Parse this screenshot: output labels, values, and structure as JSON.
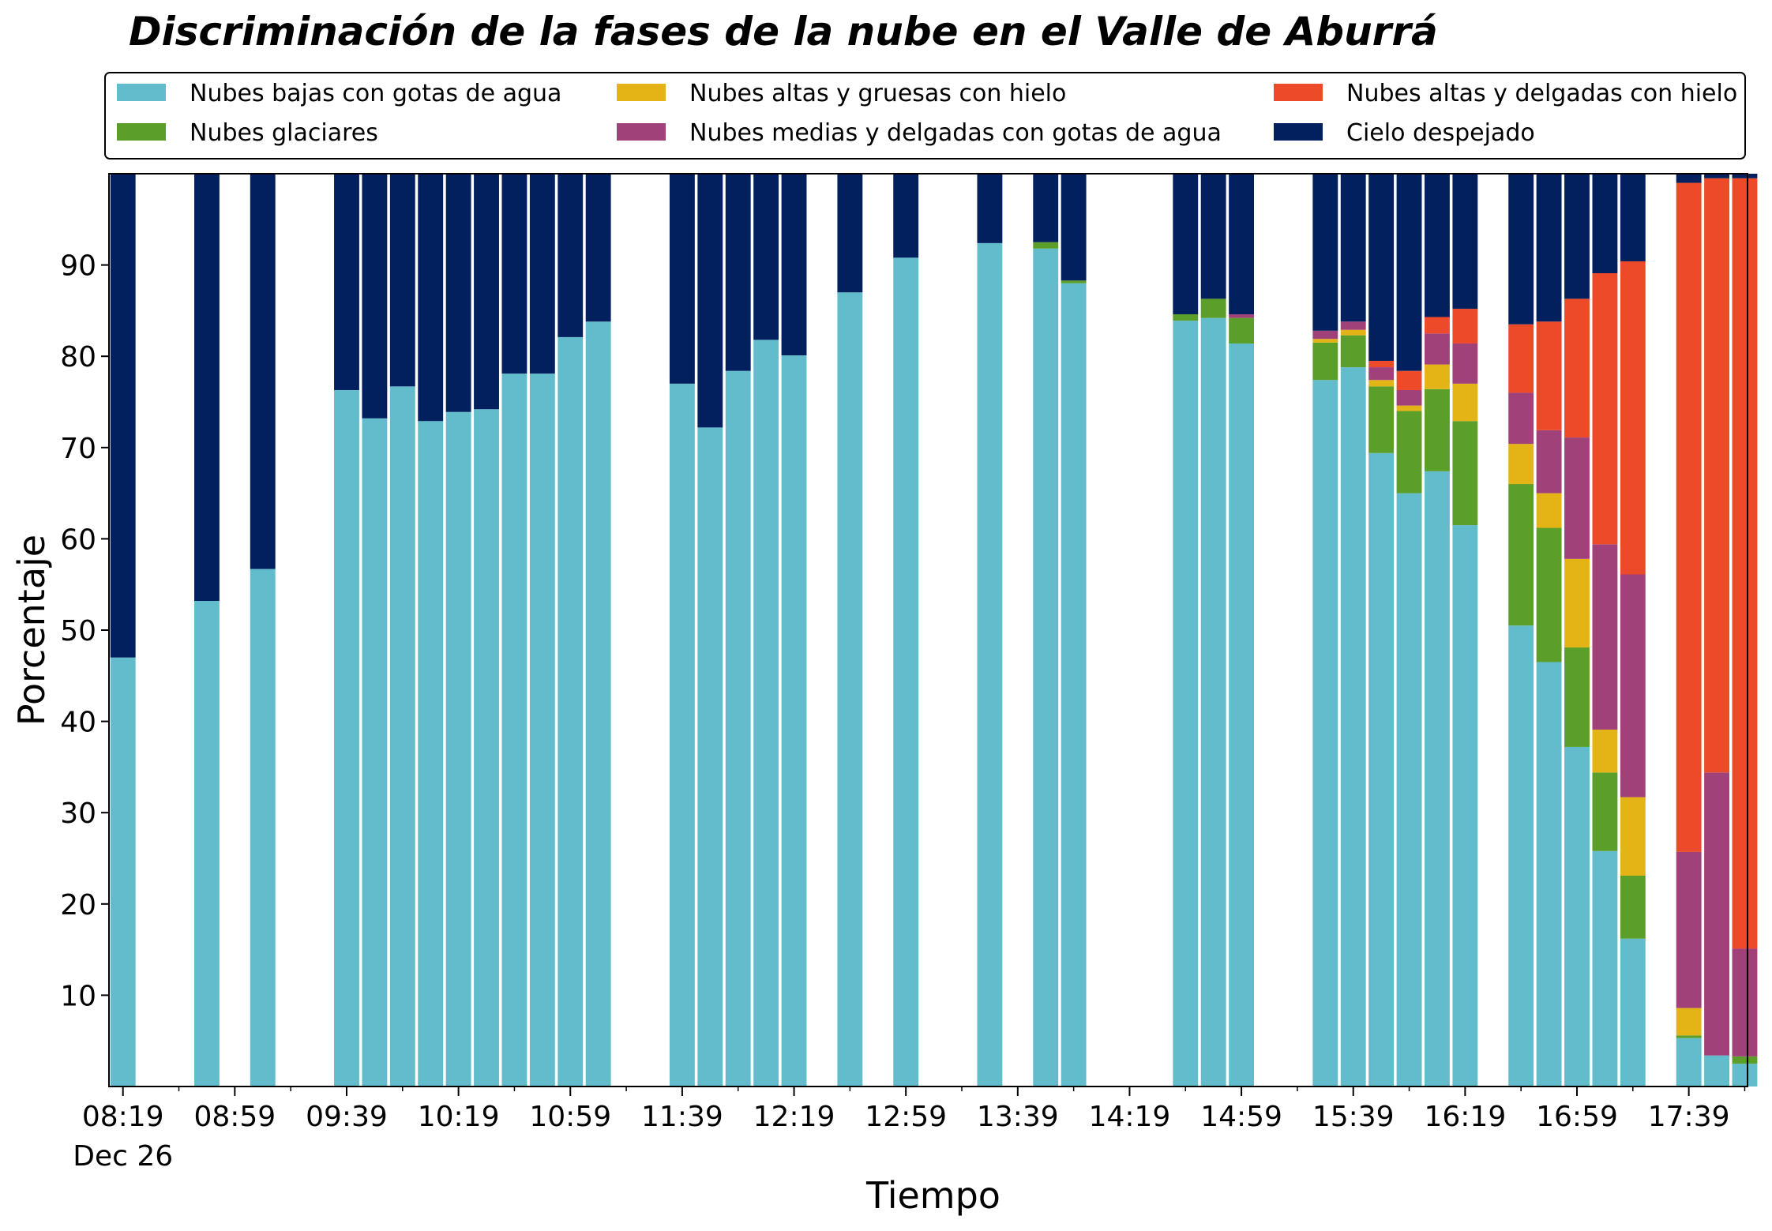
{
  "chart_data": {
    "type": "bar",
    "stacked": true,
    "title": "Discriminación de la fases de la nube en el Valle de Aburrá",
    "xlabel": "Tiempo",
    "ylabel": "Porcentaje",
    "ylim": [
      0,
      100
    ],
    "yticks": [
      10,
      20,
      30,
      40,
      50,
      60,
      70,
      80,
      90
    ],
    "xlim": [
      "08:14",
      "18:00"
    ],
    "x_tick_labels": [
      "08:19",
      "08:59",
      "09:39",
      "10:19",
      "10:59",
      "11:39",
      "12:19",
      "12:59",
      "13:39",
      "14:19",
      "14:59",
      "15:39",
      "16:19",
      "16:59",
      "17:39"
    ],
    "x_date_label": "Dec 26",
    "grid": false,
    "legend_placement": "top",
    "bar_width_minutes": 9,
    "series": [
      {
        "name": "Nubes bajas con gotas de agua",
        "color": "#63bccb"
      },
      {
        "name": "Nubes glaciares",
        "color": "#5b9e2a"
      },
      {
        "name": "Nubes altas y gruesas con hielo",
        "color": "#e4b417"
      },
      {
        "name": "Nubes medias y delgadas con gotas de agua",
        "color": "#a0417a"
      },
      {
        "name": "Nubes altas y delgadas con hielo",
        "color": "#ec4a29"
      },
      {
        "name": "Cielo despejado",
        "color": "#03205e"
      }
    ],
    "bars": [
      {
        "time": "08:19",
        "values": [
          47.0,
          0,
          0,
          0,
          0,
          53.0
        ]
      },
      {
        "time": "08:49",
        "values": [
          53.2,
          0,
          0,
          0,
          0,
          46.8
        ]
      },
      {
        "time": "09:09",
        "values": [
          56.7,
          0,
          0,
          0,
          0,
          43.3
        ]
      },
      {
        "time": "09:39",
        "values": [
          76.3,
          0,
          0,
          0,
          0,
          23.7
        ]
      },
      {
        "time": "09:49",
        "values": [
          73.2,
          0,
          0,
          0,
          0,
          26.8
        ]
      },
      {
        "time": "09:59",
        "values": [
          76.7,
          0,
          0,
          0,
          0,
          23.3
        ]
      },
      {
        "time": "10:09",
        "values": [
          72.9,
          0,
          0,
          0,
          0,
          27.1
        ]
      },
      {
        "time": "10:19",
        "values": [
          73.9,
          0,
          0,
          0,
          0,
          26.1
        ]
      },
      {
        "time": "10:29",
        "values": [
          74.2,
          0,
          0,
          0,
          0,
          25.8
        ]
      },
      {
        "time": "10:39",
        "values": [
          78.1,
          0,
          0,
          0,
          0,
          21.9
        ]
      },
      {
        "time": "10:49",
        "values": [
          78.1,
          0,
          0,
          0,
          0,
          21.9
        ]
      },
      {
        "time": "10:59",
        "values": [
          82.1,
          0,
          0,
          0,
          0,
          17.9
        ]
      },
      {
        "time": "11:09",
        "values": [
          83.8,
          0,
          0,
          0,
          0,
          16.2
        ]
      },
      {
        "time": "11:39",
        "values": [
          77.0,
          0,
          0,
          0,
          0,
          23.0
        ]
      },
      {
        "time": "11:49",
        "values": [
          72.2,
          0,
          0,
          0,
          0,
          27.8
        ]
      },
      {
        "time": "11:59",
        "values": [
          78.4,
          0,
          0,
          0,
          0,
          21.6
        ]
      },
      {
        "time": "12:09",
        "values": [
          81.8,
          0,
          0,
          0,
          0,
          18.2
        ]
      },
      {
        "time": "12:19",
        "values": [
          80.1,
          0,
          0,
          0,
          0,
          19.9
        ]
      },
      {
        "time": "12:39",
        "values": [
          87.0,
          0,
          0,
          0,
          0,
          13.0
        ]
      },
      {
        "time": "12:59",
        "values": [
          90.8,
          0,
          0,
          0,
          0,
          9.2
        ]
      },
      {
        "time": "13:29",
        "values": [
          92.4,
          0,
          0,
          0,
          0,
          7.6
        ]
      },
      {
        "time": "13:49",
        "values": [
          91.8,
          0.7,
          0,
          0,
          0,
          7.5
        ]
      },
      {
        "time": "13:59",
        "values": [
          88.0,
          0.3,
          0,
          0,
          0,
          11.7
        ]
      },
      {
        "time": "14:39",
        "values": [
          83.9,
          0.7,
          0,
          0,
          0,
          15.4
        ]
      },
      {
        "time": "14:49",
        "values": [
          84.2,
          2.1,
          0,
          0,
          0,
          13.7
        ]
      },
      {
        "time": "14:59",
        "values": [
          81.4,
          2.8,
          0,
          0.4,
          0,
          15.4
        ]
      },
      {
        "time": "15:29",
        "values": [
          77.4,
          4.1,
          0.4,
          0.9,
          0,
          17.2
        ]
      },
      {
        "time": "15:39",
        "values": [
          78.8,
          3.5,
          0.6,
          0.9,
          0,
          16.2
        ]
      },
      {
        "time": "15:49",
        "values": [
          69.4,
          7.3,
          0.7,
          1.4,
          0.7,
          20.5
        ]
      },
      {
        "time": "15:59",
        "values": [
          65.0,
          9.0,
          0.6,
          1.7,
          2.1,
          21.6
        ]
      },
      {
        "time": "16:09",
        "values": [
          67.4,
          9.0,
          2.7,
          3.4,
          1.8,
          15.7
        ]
      },
      {
        "time": "16:19",
        "values": [
          61.5,
          11.4,
          4.1,
          4.4,
          3.8,
          14.8
        ]
      },
      {
        "time": "16:39",
        "values": [
          50.5,
          15.5,
          4.4,
          5.6,
          7.5,
          16.5
        ]
      },
      {
        "time": "16:49",
        "values": [
          46.5,
          14.7,
          3.8,
          6.9,
          11.9,
          16.2
        ]
      },
      {
        "time": "16:59",
        "values": [
          37.2,
          10.9,
          9.7,
          13.3,
          15.2,
          13.7
        ]
      },
      {
        "time": "17:09",
        "values": [
          25.8,
          8.6,
          4.7,
          20.3,
          29.7,
          10.9
        ]
      },
      {
        "time": "17:19",
        "values": [
          16.2,
          6.9,
          8.6,
          24.4,
          34.3,
          9.6
        ]
      },
      {
        "time": "17:39",
        "values": [
          5.3,
          0.3,
          3.0,
          17.1,
          73.3,
          1.0
        ]
      },
      {
        "time": "17:49",
        "values": [
          3.4,
          0,
          0,
          31.0,
          65.1,
          0.5
        ]
      },
      {
        "time": "17:59",
        "values": [
          2.5,
          0.8,
          0,
          11.8,
          84.4,
          0.5
        ]
      }
    ]
  }
}
